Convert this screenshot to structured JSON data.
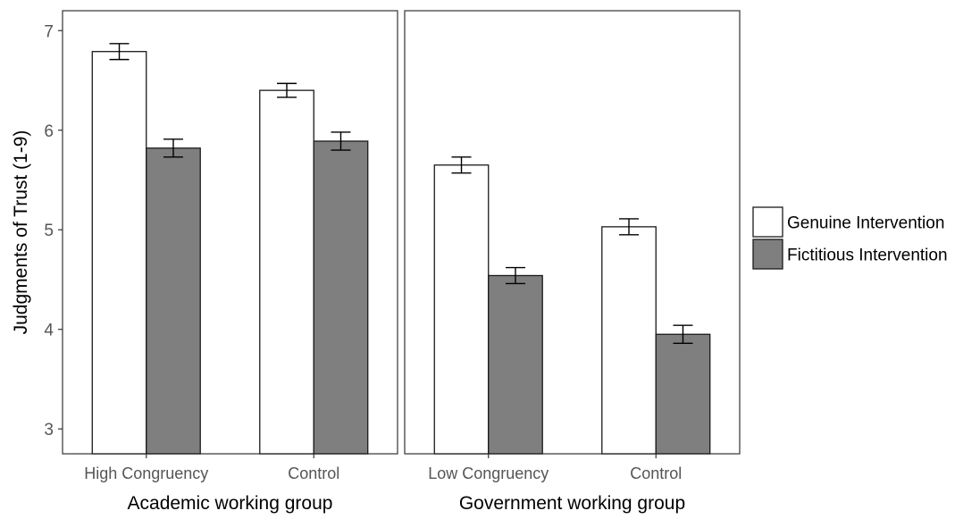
{
  "chart_data": {
    "type": "bar",
    "ylabel": "Judgments of Trust (1-9)",
    "ylim": [
      2.75,
      7.2
    ],
    "yticks": [
      3,
      4,
      5,
      6,
      7
    ],
    "legend": {
      "position": "right",
      "items": [
        {
          "name": "Genuine Intervention",
          "color": "#ffffff"
        },
        {
          "name": "Fictitious Intervention",
          "color": "#7f7f7f"
        }
      ]
    },
    "panels": [
      {
        "xlabel": "Academic working group",
        "categories": [
          "High Congruency",
          "Control"
        ],
        "series": [
          {
            "name": "Genuine Intervention",
            "values": [
              6.79,
              6.4
            ],
            "err": [
              0.08,
              0.07
            ]
          },
          {
            "name": "Fictitious Intervention",
            "values": [
              5.82,
              5.89
            ],
            "err": [
              0.09,
              0.09
            ]
          }
        ]
      },
      {
        "xlabel": "Government working group",
        "categories": [
          "Low Congruency",
          "Control"
        ],
        "series": [
          {
            "name": "Genuine Intervention",
            "values": [
              5.65,
              5.03
            ],
            "err": [
              0.08,
              0.08
            ]
          },
          {
            "name": "Fictitious Intervention",
            "values": [
              4.54,
              3.95
            ],
            "err": [
              0.08,
              0.09
            ]
          }
        ]
      }
    ],
    "grid": false
  }
}
